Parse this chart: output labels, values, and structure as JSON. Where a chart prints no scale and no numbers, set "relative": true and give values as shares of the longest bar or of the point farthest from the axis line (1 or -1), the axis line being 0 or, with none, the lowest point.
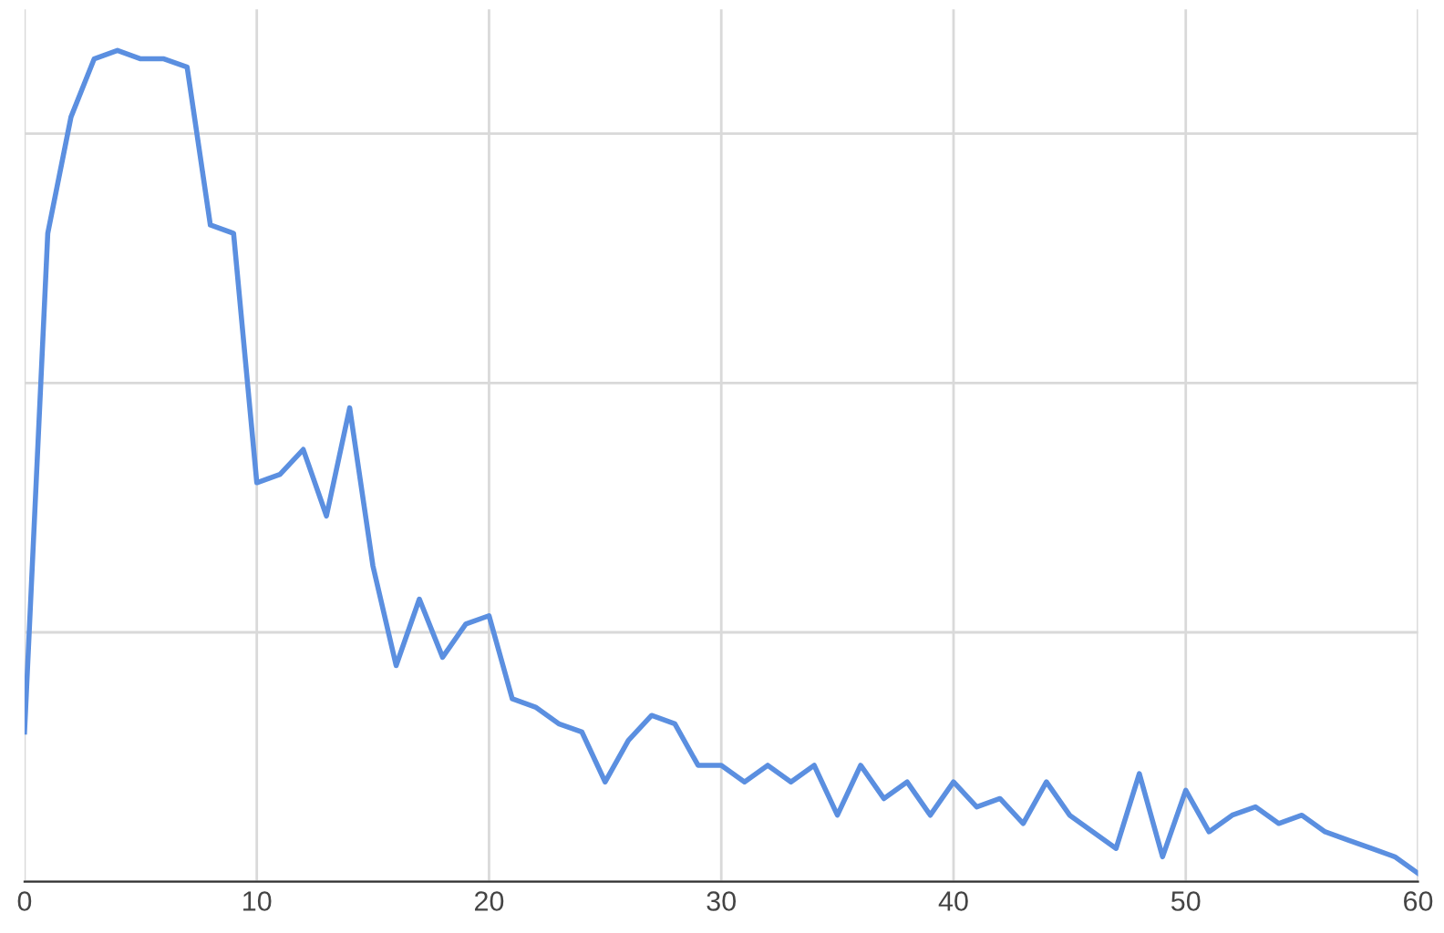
{
  "chart_data": {
    "type": "line",
    "relative": true,
    "x": [
      0,
      1,
      2,
      3,
      4,
      5,
      6,
      7,
      8,
      9,
      10,
      11,
      12,
      13,
      14,
      15,
      16,
      17,
      18,
      19,
      20,
      21,
      22,
      23,
      24,
      25,
      26,
      27,
      28,
      29,
      30,
      31,
      32,
      33,
      34,
      35,
      36,
      37,
      38,
      39,
      40,
      41,
      42,
      43,
      44,
      45,
      46,
      47,
      48,
      49,
      50,
      51,
      52,
      53,
      54,
      55,
      56,
      57,
      58,
      59,
      60
    ],
    "series": [
      {
        "color": "#5b8fe0",
        "values": [
          0.18,
          0.78,
          0.92,
          0.99,
          1.0,
          0.99,
          0.99,
          0.98,
          0.79,
          0.78,
          0.48,
          0.49,
          0.52,
          0.44,
          0.57,
          0.38,
          0.26,
          0.34,
          0.27,
          0.31,
          0.32,
          0.22,
          0.21,
          0.19,
          0.18,
          0.12,
          0.17,
          0.2,
          0.19,
          0.14,
          0.14,
          0.12,
          0.14,
          0.12,
          0.14,
          0.08,
          0.14,
          0.1,
          0.12,
          0.08,
          0.12,
          0.09,
          0.1,
          0.07,
          0.12,
          0.08,
          0.06,
          0.04,
          0.13,
          0.03,
          0.11,
          0.06,
          0.08,
          0.09,
          0.07,
          0.08,
          0.06,
          0.05,
          0.04,
          0.03,
          0.01
        ]
      }
    ],
    "xlim": [
      0,
      60
    ],
    "xticks": [
      0,
      10,
      20,
      30,
      40,
      50,
      60
    ],
    "grid": true,
    "marker": "none",
    "line_style": "solid"
  }
}
